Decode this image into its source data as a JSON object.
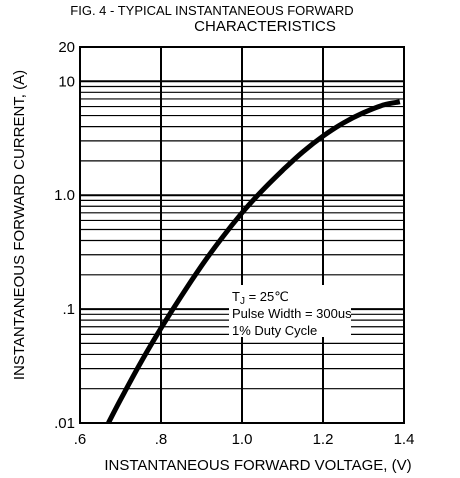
{
  "chart_data": {
    "type": "line",
    "title_line1": "FIG. 4 - TYPICAL INSTANTANEOUS FORWARD",
    "title_line2": "CHARACTERISTICS",
    "xlabel": "INSTANTANEOUS FORWARD VOLTAGE, (V)",
    "ylabel": "INSTANTANEOUS FORWARD CURRENT, (A)",
    "xlim": [
      0.6,
      1.4
    ],
    "ylim": [
      0.01,
      20
    ],
    "yscale": "log",
    "grid": true,
    "x_ticks": [
      {
        "value": 0.6,
        "label": ".6"
      },
      {
        "value": 0.8,
        "label": ".8"
      },
      {
        "value": 1.0,
        "label": "1.0"
      },
      {
        "value": 1.2,
        "label": "1.2"
      },
      {
        "value": 1.4,
        "label": "1.4"
      }
    ],
    "y_ticks": [
      {
        "value": 0.01,
        "label": ".01"
      },
      {
        "value": 0.1,
        "label": ".1"
      },
      {
        "value": 1.0,
        "label": "1.0"
      },
      {
        "value": 10,
        "label": "10"
      },
      {
        "value": 20,
        "label": "20"
      }
    ],
    "annotation": {
      "tj_label": "T",
      "tj_sub": "J",
      "tj_value": " = 25℃",
      "line2": "Pulse Width = 300us",
      "line3": "1% Duty Cycle"
    },
    "series": [
      {
        "x": [
          0.67,
          0.7,
          0.75,
          0.8,
          0.85,
          0.9,
          0.95,
          1.0,
          1.05,
          1.1,
          1.15,
          1.2,
          1.25,
          1.3,
          1.35,
          1.39
        ],
        "y": [
          0.01,
          0.016,
          0.034,
          0.068,
          0.13,
          0.24,
          0.42,
          0.7,
          1.1,
          1.65,
          2.4,
          3.3,
          4.3,
          5.3,
          6.2,
          6.6
        ]
      }
    ]
  }
}
